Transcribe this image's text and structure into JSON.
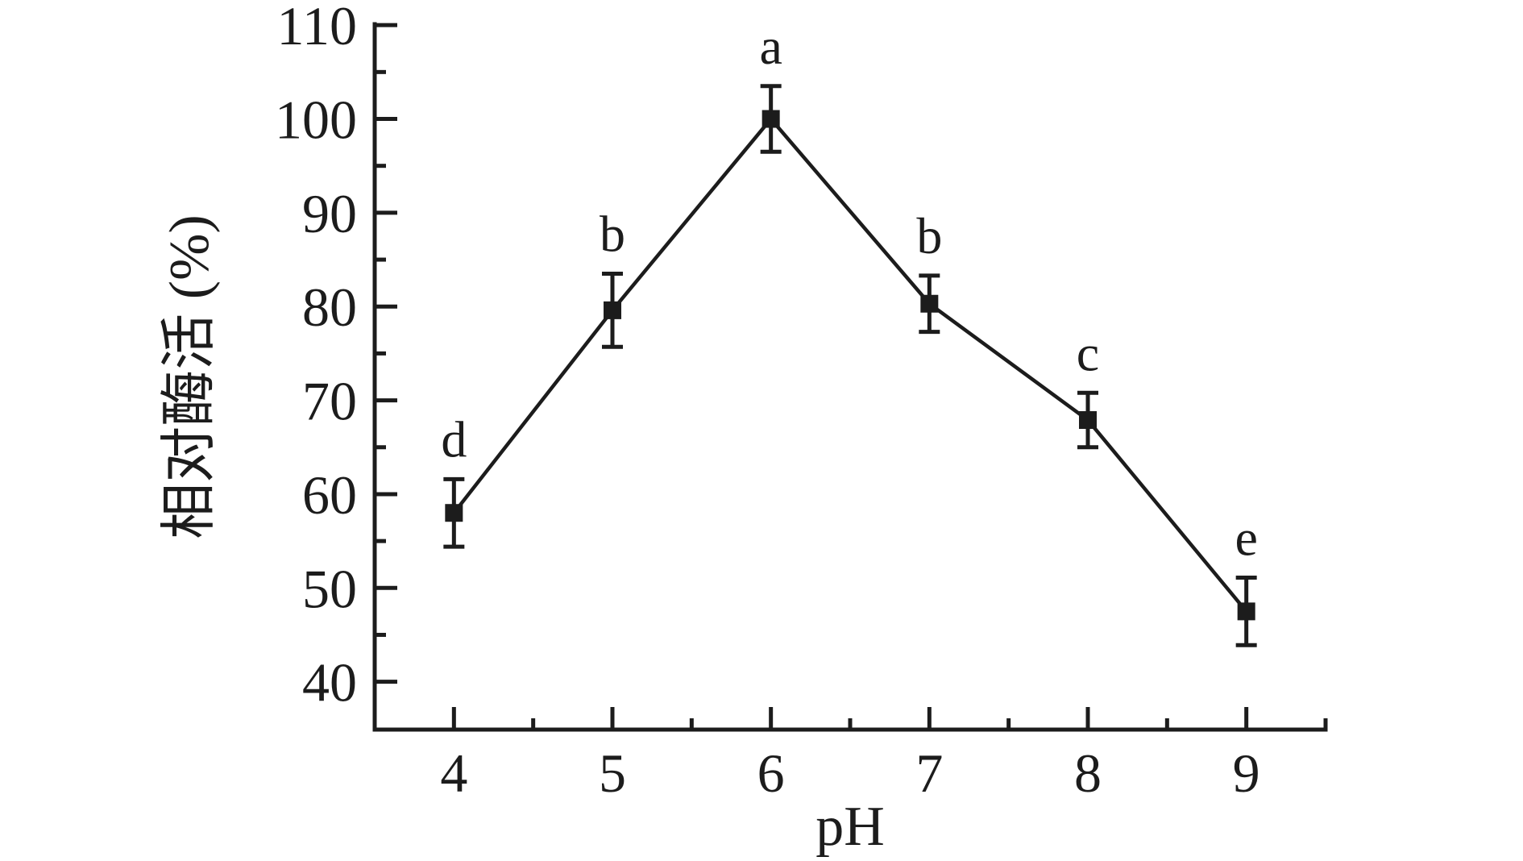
{
  "figure": {
    "background": "#ffffff",
    "ink_color": "#1c1c1c"
  },
  "chart_data": {
    "type": "line",
    "title": "",
    "xlabel": "pH",
    "ylabel": "相对酶活 (%)",
    "x": [
      4,
      5,
      6,
      7,
      8,
      9
    ],
    "series": [
      {
        "name": "relative-enzyme-activity",
        "values": [
          58.0,
          79.6,
          100.0,
          80.3,
          67.9,
          47.5
        ],
        "errors": [
          3.6,
          3.9,
          3.5,
          3.0,
          2.9,
          3.6
        ],
        "point_labels": [
          "d",
          "b",
          "a",
          "b",
          "c",
          "e"
        ],
        "marker": "filled-square",
        "color": "#1c1c1c"
      }
    ],
    "xlim": [
      3.5,
      9.5
    ],
    "ylim": [
      34.9,
      110.1
    ],
    "xticks": [
      4,
      5,
      6,
      7,
      8,
      9
    ],
    "yticks": [
      40,
      50,
      60,
      70,
      80,
      90,
      100,
      110
    ],
    "minor_x_step": 0.5,
    "minor_y_step": 5,
    "grid": false,
    "legend_position": "none"
  }
}
